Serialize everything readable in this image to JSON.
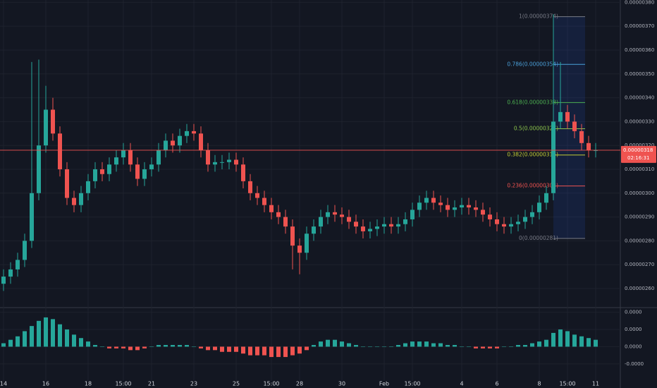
{
  "chart_data": {
    "type": "candlestick",
    "categories": [
      "14",
      null,
      null,
      null,
      null,
      null,
      "16",
      null,
      null,
      null,
      null,
      null,
      "18",
      null,
      null,
      null,
      null,
      "15:00",
      null,
      null,
      null,
      "21",
      null,
      null,
      null,
      null,
      null,
      "23",
      null,
      null,
      null,
      null,
      null,
      "25",
      null,
      null,
      null,
      null,
      "15:00",
      null,
      null,
      null,
      "28",
      null,
      null,
      null,
      null,
      null,
      "30",
      null,
      null,
      null,
      null,
      null,
      "Feb",
      null,
      null,
      null,
      "15:00",
      null,
      null,
      null,
      null,
      null,
      null,
      "4",
      null,
      null,
      null,
      null,
      "6",
      null,
      null,
      null,
      null,
      null,
      "8",
      null,
      null,
      null,
      "15:00",
      null,
      null,
      null,
      "11"
    ],
    "open": [
      2.62e-06,
      2.65e-06,
      2.68e-06,
      2.72e-06,
      2.8e-06,
      3e-06,
      3.2e-06,
      3.35e-06,
      3.25e-06,
      3.1e-06,
      2.98e-06,
      2.95e-06,
      3e-06,
      3.05e-06,
      3.1e-06,
      3.08e-06,
      3.12e-06,
      3.15e-06,
      3.18e-06,
      3.12e-06,
      3.06e-06,
      3.1e-06,
      3.12e-06,
      3.18e-06,
      3.22e-06,
      3.2e-06,
      3.24e-06,
      3.26e-06,
      3.25e-06,
      3.18e-06,
      3.12e-06,
      3.13e-06,
      3.13e-06,
      3.14e-06,
      3.12e-06,
      3.05e-06,
      3e-06,
      2.98e-06,
      2.95e-06,
      2.92e-06,
      2.9e-06,
      2.86e-06,
      2.78e-06,
      2.75e-06,
      2.83e-06,
      2.86e-06,
      2.9e-06,
      2.92e-06,
      2.91e-06,
      2.9e-06,
      2.88e-06,
      2.86e-06,
      2.84e-06,
      2.85e-06,
      2.86e-06,
      2.87e-06,
      2.86e-06,
      2.87e-06,
      2.89e-06,
      2.93e-06,
      2.96e-06,
      2.98e-06,
      2.96e-06,
      2.95e-06,
      2.93e-06,
      2.94e-06,
      2.95e-06,
      2.94e-06,
      2.93e-06,
      2.91e-06,
      2.89e-06,
      2.87e-06,
      2.86e-06,
      2.87e-06,
      2.88e-06,
      2.9e-06,
      2.92e-06,
      2.96e-06,
      3e-06,
      3.3e-06,
      3.34e-06,
      3.3e-06,
      3.26e-06,
      3.21e-06,
      3.18e-06
    ],
    "high": [
      2.68e-06,
      2.71e-06,
      2.75e-06,
      2.83e-06,
      3.55e-06,
      3.56e-06,
      3.45e-06,
      3.4e-06,
      3.28e-06,
      3.13e-06,
      3.01e-06,
      3.03e-06,
      3.08e-06,
      3.13e-06,
      3.13e-06,
      3.15e-06,
      3.18e-06,
      3.21e-06,
      3.21e-06,
      3.15e-06,
      3.13e-06,
      3.15e-06,
      3.21e-06,
      3.25e-06,
      3.25e-06,
      3.27e-06,
      3.29e-06,
      3.29e-06,
      3.28e-06,
      3.21e-06,
      3.16e-06,
      3.16e-06,
      3.17e-06,
      3.17e-06,
      3.15e-06,
      3.08e-06,
      3.03e-06,
      3.01e-06,
      2.98e-06,
      2.95e-06,
      2.93e-06,
      2.89e-06,
      2.81e-06,
      2.86e-06,
      2.89e-06,
      2.93e-06,
      2.95e-06,
      2.95e-06,
      2.94e-06,
      2.93e-06,
      2.91e-06,
      2.89e-06,
      2.88e-06,
      2.89e-06,
      2.9e-06,
      2.9e-06,
      2.9e-06,
      2.92e-06,
      2.96e-06,
      2.99e-06,
      3.01e-06,
      3.01e-06,
      2.99e-06,
      2.98e-06,
      2.97e-06,
      2.98e-06,
      2.98e-06,
      2.97e-06,
      2.96e-06,
      2.94e-06,
      2.92e-06,
      2.9e-06,
      2.9e-06,
      2.91e-06,
      2.93e-06,
      2.95e-06,
      2.99e-06,
      3.03e-06,
      3.75e-06,
      3.55e-06,
      3.37e-06,
      3.33e-06,
      3.29e-06,
      3.24e-06,
      3.21e-06
    ],
    "low": [
      2.59e-06,
      2.62e-06,
      2.65e-06,
      2.69e-06,
      2.77e-06,
      2.97e-06,
      3.17e-06,
      3.22e-06,
      3.07e-06,
      2.95e-06,
      2.92e-06,
      2.92e-06,
      2.97e-06,
      3.02e-06,
      3.05e-06,
      3.05e-06,
      3.09e-06,
      3.12e-06,
      3.09e-06,
      3.03e-06,
      3.03e-06,
      3.07e-06,
      3.09e-06,
      3.15e-06,
      3.17e-06,
      3.17e-06,
      3.21e-06,
      3.22e-06,
      3.15e-06,
      3.09e-06,
      3.09e-06,
      3.1e-06,
      3.1e-06,
      3.09e-06,
      3.02e-06,
      2.97e-06,
      2.95e-06,
      2.92e-06,
      2.89e-06,
      2.87e-06,
      2.83e-06,
      2.68e-06,
      2.66e-06,
      2.72e-06,
      2.8e-06,
      2.83e-06,
      2.87e-06,
      2.88e-06,
      2.87e-06,
      2.85e-06,
      2.83e-06,
      2.81e-06,
      2.81e-06,
      2.82e-06,
      2.83e-06,
      2.83e-06,
      2.83e-06,
      2.84e-06,
      2.86e-06,
      2.9e-06,
      2.93e-06,
      2.93e-06,
      2.92e-06,
      2.9e-06,
      2.9e-06,
      2.91e-06,
      2.91e-06,
      2.9e-06,
      2.88e-06,
      2.86e-06,
      2.84e-06,
      2.83e-06,
      2.83e-06,
      2.84e-06,
      2.85e-06,
      2.87e-06,
      2.89e-06,
      2.93e-06,
      2.97e-06,
      3.27e-06,
      3.27e-06,
      3.23e-06,
      3.18e-06,
      3.15e-06,
      3.15e-06
    ],
    "close": [
      2.65e-06,
      2.68e-06,
      2.72e-06,
      2.8e-06,
      3e-06,
      3.2e-06,
      3.35e-06,
      3.25e-06,
      3.1e-06,
      2.98e-06,
      2.95e-06,
      3e-06,
      3.05e-06,
      3.1e-06,
      3.08e-06,
      3.12e-06,
      3.15e-06,
      3.18e-06,
      3.12e-06,
      3.06e-06,
      3.1e-06,
      3.12e-06,
      3.18e-06,
      3.22e-06,
      3.2e-06,
      3.24e-06,
      3.26e-06,
      3.25e-06,
      3.18e-06,
      3.12e-06,
      3.13e-06,
      3.13e-06,
      3.14e-06,
      3.12e-06,
      3.05e-06,
      3e-06,
      2.98e-06,
      2.95e-06,
      2.92e-06,
      2.9e-06,
      2.86e-06,
      2.78e-06,
      2.75e-06,
      2.83e-06,
      2.86e-06,
      2.9e-06,
      2.92e-06,
      2.91e-06,
      2.9e-06,
      2.88e-06,
      2.86e-06,
      2.84e-06,
      2.85e-06,
      2.86e-06,
      2.87e-06,
      2.86e-06,
      2.87e-06,
      2.89e-06,
      2.93e-06,
      2.96e-06,
      2.98e-06,
      2.96e-06,
      2.95e-06,
      2.93e-06,
      2.94e-06,
      2.95e-06,
      2.94e-06,
      2.93e-06,
      2.91e-06,
      2.89e-06,
      2.87e-06,
      2.86e-06,
      2.87e-06,
      2.88e-06,
      2.9e-06,
      2.92e-06,
      2.96e-06,
      3e-06,
      3.3e-06,
      3.34e-06,
      3.3e-06,
      3.26e-06,
      3.21e-06,
      3.18e-06,
      3.18e-06
    ],
    "up_color": "#26a69a",
    "down_color": "#ef5350",
    "ylim": [
      2.523e-06,
      3.81e-06
    ],
    "yticks": [
      {
        "value": 3.8e-06,
        "label": "0.00000380"
      },
      {
        "value": 3.7e-06,
        "label": "0.00000370"
      },
      {
        "value": 3.6e-06,
        "label": "0.00000360"
      },
      {
        "value": 3.5e-06,
        "label": "0.00000350"
      },
      {
        "value": 3.4e-06,
        "label": "0.00000340"
      },
      {
        "value": 3.3e-06,
        "label": "0.00000330"
      },
      {
        "value": 3.2e-06,
        "label": "0.00000320"
      },
      {
        "value": 3.1e-06,
        "label": "0.00000310"
      },
      {
        "value": 3e-06,
        "label": "0.00000300"
      },
      {
        "value": 2.9e-06,
        "label": "0.00000290"
      },
      {
        "value": 2.8e-06,
        "label": "0.00000280"
      },
      {
        "value": 2.7e-06,
        "label": "0.00000270"
      },
      {
        "value": 2.6e-06,
        "label": "0.00000260"
      }
    ],
    "grid": true,
    "last_price": {
      "value": 3.18e-06,
      "label": "0.00000318"
    },
    "countdown": "02:16:31",
    "fib_levels": [
      {
        "label": "1(0.00000374)",
        "price": 3.74e-06,
        "color": "#787b86"
      },
      {
        "label": "0.786(0.00000354)",
        "price": 3.54e-06,
        "color": "#4a9fd8"
      },
      {
        "label": "0.618(0.00000338)",
        "price": 3.38e-06,
        "color": "#4caf50"
      },
      {
        "label": "0.5(0.00000327)",
        "price": 3.27e-06,
        "color": "#8bc34a"
      },
      {
        "label": "0.382(0.00000316)",
        "price": 3.16e-06,
        "color": "#c0ca33"
      },
      {
        "label": "0.236(0.00000303)",
        "price": 3.03e-06,
        "color": "#ef5350"
      },
      {
        "label": "0(0.00000281)",
        "price": 2.81e-06,
        "color": "#787b86"
      }
    ],
    "macd": {
      "type": "histogram",
      "values": [
        2e-09,
        4e-09,
        6e-09,
        9e-09,
        1.2e-08,
        1.5e-08,
        1.7e-08,
        1.6e-08,
        1.3e-08,
        1e-08,
        7e-09,
        5e-09,
        3e-09,
        1e-09,
        0,
        -1e-09,
        -1e-09,
        -1e-09,
        -2e-09,
        -2e-09,
        -1e-09,
        0,
        1e-09,
        1e-09,
        1e-09,
        1e-09,
        1e-09,
        0,
        -1e-09,
        -2e-09,
        -2e-09,
        -3e-09,
        -3e-09,
        -3e-09,
        -4e-09,
        -5e-09,
        -5e-09,
        -5e-09,
        -6e-09,
        -6e-09,
        -6e-09,
        -5e-09,
        -4e-09,
        -2e-09,
        1e-09,
        3e-09,
        4e-09,
        4e-09,
        3e-09,
        2e-09,
        1e-09,
        0,
        0,
        0,
        0,
        0,
        1e-09,
        2e-09,
        3e-09,
        3e-09,
        3e-09,
        2e-09,
        2e-09,
        1e-09,
        1e-09,
        0,
        0,
        -1e-09,
        -1e-09,
        -1e-09,
        -1e-09,
        0,
        0,
        1e-09,
        1e-09,
        2e-09,
        3e-09,
        4e-09,
        8e-09,
        1e-08,
        9e-09,
        7e-09,
        6e-09,
        5e-09,
        4e-09
      ],
      "ylim": [
        -1.99e-08,
        2.23e-08
      ],
      "yticks": [
        {
          "value": 2e-08,
          "label": "0.0000"
        },
        {
          "value": 1e-08,
          "label": "0.0000"
        },
        {
          "value": 0,
          "label": "0.0000"
        },
        {
          "value": -1e-08,
          "label": "-0.0000"
        }
      ]
    }
  }
}
